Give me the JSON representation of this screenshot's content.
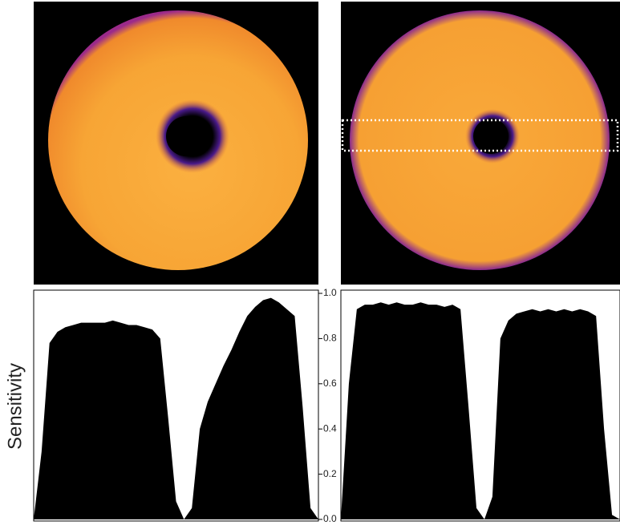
{
  "chart_data": {
    "type": "area",
    "y_label": "Sensitivity",
    "ylim": [
      0,
      1
    ],
    "yticks": [
      {
        "value": 0,
        "label": "0.0"
      },
      0.2,
      0.4,
      0.6,
      0.8,
      {
        "value": 1,
        "label": "1.0"
      }
    ],
    "series": [
      {
        "color": "#000000",
        "values": [
          0.0,
          0.3,
          0.78,
          0.83,
          0.85,
          0.86,
          0.87,
          0.87,
          0.87,
          0.87,
          0.88,
          0.87,
          0.86,
          0.86,
          0.85,
          0.84,
          0.8,
          0.45,
          0.08,
          0.0,
          0.05,
          0.4,
          0.52,
          0.6,
          0.68,
          0.75,
          0.83,
          0.9,
          0.94,
          0.97,
          0.98,
          0.96,
          0.93,
          0.9,
          0.5,
          0.05,
          0.0
        ]
      },
      {
        "color": "#000000",
        "values": [
          0.0,
          0.6,
          0.93,
          0.95,
          0.95,
          0.96,
          0.95,
          0.96,
          0.95,
          0.95,
          0.96,
          0.95,
          0.95,
          0.94,
          0.95,
          0.93,
          0.5,
          0.05,
          0.0,
          0.1,
          0.8,
          0.88,
          0.91,
          0.92,
          0.93,
          0.92,
          0.93,
          0.92,
          0.93,
          0.92,
          0.93,
          0.92,
          0.9,
          0.4,
          0.02,
          0.0
        ]
      }
    ]
  }
}
